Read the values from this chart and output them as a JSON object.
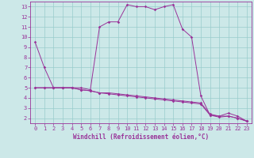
{
  "xlabel": "Windchill (Refroidissement éolien,°C)",
  "background_color": "#cce8e8",
  "line_color": "#993399",
  "xlim_min": -0.5,
  "xlim_max": 23.5,
  "ylim_min": 1.5,
  "ylim_max": 13.5,
  "xticks": [
    0,
    1,
    2,
    3,
    4,
    5,
    6,
    7,
    8,
    9,
    10,
    11,
    12,
    13,
    14,
    15,
    16,
    17,
    18,
    19,
    20,
    21,
    22,
    23
  ],
  "yticks": [
    2,
    3,
    4,
    5,
    6,
    7,
    8,
    9,
    10,
    11,
    12,
    13
  ],
  "curve1_x": [
    0,
    1,
    2,
    3,
    4,
    5,
    6,
    7,
    8,
    9,
    10,
    11,
    12,
    13,
    14,
    15,
    16,
    17,
    18,
    19,
    20,
    21,
    22,
    23
  ],
  "curve1_y": [
    9.5,
    7.0,
    5.0,
    5.0,
    5.0,
    5.0,
    4.8,
    11.0,
    11.5,
    11.5,
    13.2,
    13.0,
    13.0,
    12.7,
    13.0,
    13.2,
    10.8,
    10.0,
    4.2,
    2.3,
    2.2,
    2.5,
    2.2,
    1.7
  ],
  "curve2_x": [
    0,
    1,
    2,
    3,
    4,
    5,
    6,
    7,
    8,
    9,
    10,
    11,
    12,
    13,
    14,
    15,
    16,
    17,
    18,
    19,
    20,
    21,
    22,
    23
  ],
  "curve2_y": [
    5.0,
    5.0,
    5.0,
    5.0,
    5.0,
    4.8,
    4.7,
    4.5,
    4.5,
    4.4,
    4.3,
    4.2,
    4.1,
    4.0,
    3.9,
    3.8,
    3.7,
    3.6,
    3.5,
    2.4,
    2.2,
    2.2,
    2.0,
    1.7
  ],
  "curve3_x": [
    0,
    1,
    2,
    3,
    4,
    5,
    6,
    7,
    8,
    9,
    10,
    11,
    12,
    13,
    14,
    15,
    16,
    17,
    18,
    19,
    20,
    21,
    22,
    23
  ],
  "curve3_y": [
    5.0,
    5.0,
    5.0,
    5.0,
    5.0,
    4.8,
    4.7,
    4.5,
    4.4,
    4.3,
    4.2,
    4.1,
    4.0,
    3.9,
    3.8,
    3.7,
    3.6,
    3.5,
    3.4,
    2.3,
    2.1,
    2.2,
    2.0,
    1.7
  ],
  "grid_color": "#99cccc",
  "tick_fontsize": 5.0,
  "xlabel_fontsize": 5.5,
  "markersize": 1.8
}
